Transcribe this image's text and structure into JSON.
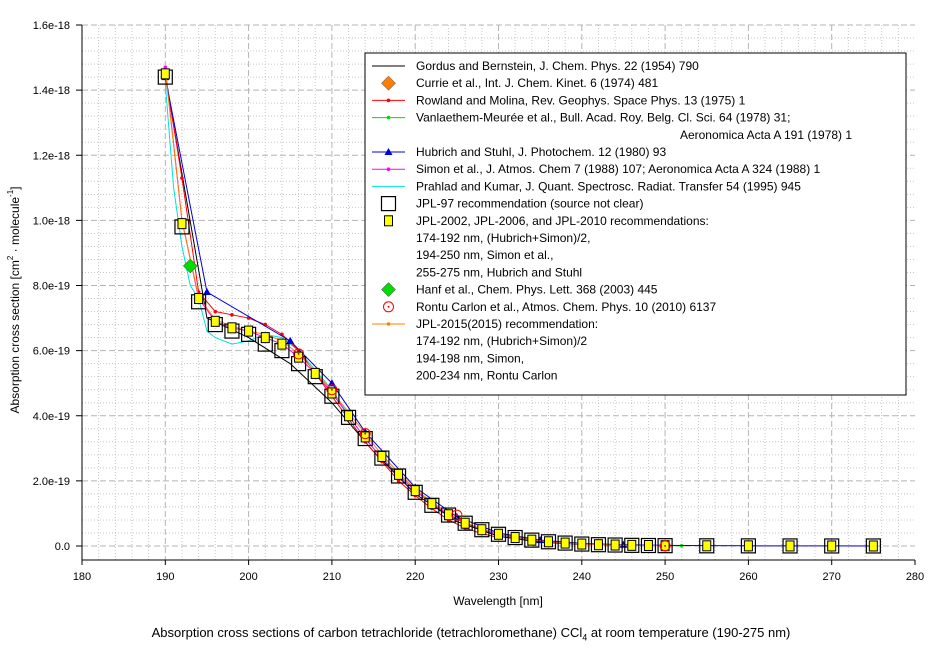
{
  "chart_data": {
    "type": "line",
    "title": "Absorption cross sections of carbon tetrachloride (tetrachloromethane) CCl4 at room temperature (190-275 nm)",
    "caption_parts": {
      "before": "Absorption cross sections of carbon tetrachloride (tetrachloromethane) CCl",
      "sub": "4",
      "after": " at room temperature (190-275 nm)"
    },
    "xlabel": "Wavelength [nm]",
    "ylabel": "Absorption cross section [cm2 · molecule-1]",
    "ylabel_parts": {
      "a": "Absorption cross section [cm",
      "sup1": "2",
      "b": " · molecule",
      "sup2": "-1",
      "c": "]"
    },
    "xlim": [
      180,
      280
    ],
    "ylim": [
      0,
      1.6e-18
    ],
    "x_ticks": [
      "180",
      "190",
      "200",
      "210",
      "220",
      "230",
      "240",
      "250",
      "260",
      "270",
      "280"
    ],
    "y_ticks": [
      "0.0",
      "2.0e-19",
      "4.0e-19",
      "6.0e-19",
      "8.0e-19",
      "1.0e-18",
      "1.2e-18",
      "1.4e-18",
      "1.6e-18"
    ],
    "grid": true,
    "legend_position": "top-right",
    "series": [
      {
        "name": "Gordus and Bernstein, J. Chem. Phys. 22 (1954) 790",
        "style": "line",
        "color": "#000000",
        "x": [
          190,
          195,
          200,
          205,
          210,
          215,
          220,
          225,
          230,
          235,
          240
        ],
        "y": [
          1.44e-18,
          7e-19,
          6.4e-19,
          5.6e-19,
          4.4e-19,
          2.9e-19,
          1.6e-19,
          7.5e-20,
          3e-20,
          1.2e-20,
          5e-21
        ]
      },
      {
        "name": "Currie et al., Int. J. Chem. Kinet. 6 (1974) 481",
        "style": "marker",
        "marker": "diamond",
        "color": "#ff8000",
        "x": [],
        "y": []
      },
      {
        "name": "Rowland and Molina, Rev. Geophys. Space Phys. 13 (1975) 1",
        "style": "line-dot",
        "color": "#ff0000",
        "x": [
          190,
          192,
          194,
          196,
          198,
          200,
          202,
          204,
          206,
          208,
          210,
          212,
          214,
          216,
          218,
          220,
          222,
          224,
          226,
          228,
          230
        ],
        "y": [
          1.45e-18,
          1.13e-18,
          7.8e-19,
          7.2e-19,
          7.1e-19,
          7e-19,
          6.8e-19,
          6.5e-19,
          6e-19,
          5.3e-19,
          4.6e-19,
          3.9e-19,
          3.2e-19,
          2.6e-19,
          2e-19,
          1.55e-19,
          1.15e-19,
          8e-20,
          5.5e-20,
          3.8e-20,
          2.6e-20
        ]
      },
      {
        "name": "Vanlaethem-Meurée et al., Bull. Acad. Roy. Belg. Cl. Sci. 64 (1978) 31;",
        "name2": "Aeronomica Acta A 191 (1978) 1",
        "style": "line-dot",
        "color": "#00dd00",
        "x": [
          230,
          232,
          234,
          236,
          238,
          240,
          242,
          244,
          246,
          248,
          250,
          252
        ],
        "y": [
          3.9e-20,
          2.8e-20,
          2e-20,
          1.4e-20,
          1e-20,
          7e-21,
          5e-21,
          3.5e-21,
          2.5e-21,
          1.8e-21,
          1.2e-21,
          8e-22
        ]
      },
      {
        "name": "Hubrich and Stuhl, J. Photochem. 12 (1980) 93",
        "style": "line-marker",
        "marker": "triangle",
        "color": "#0000dd",
        "x": [
          190,
          195,
          205,
          210,
          214,
          220,
          225,
          230,
          235,
          240,
          245,
          250,
          255,
          260,
          265,
          270,
          275
        ],
        "y": [
          1.44e-18,
          7.8e-19,
          6.3e-19,
          5e-19,
          3.5e-19,
          1.8e-19,
          9e-20,
          4e-20,
          1.8e-20,
          8e-21,
          4e-21,
          2e-21,
          1e-21,
          6e-22,
          4e-22,
          2e-22,
          1e-22
        ]
      },
      {
        "name": "Simon et al., J. Atmos. Chem 7 (1988) 107; Aeronomica Acta A 324 (1988) 1",
        "style": "line-dot",
        "color": "#ff00ff",
        "x": [
          190,
          192,
          194,
          196,
          198,
          200,
          202,
          204,
          206,
          208,
          210,
          212,
          214,
          216,
          218,
          220,
          222,
          224,
          226,
          228,
          230,
          232,
          234,
          236,
          238,
          240,
          242,
          244,
          246,
          248,
          250
        ],
        "y": [
          1.47e-18,
          1e-18,
          7.6e-19,
          6.9e-19,
          6.7e-19,
          6.6e-19,
          6.4e-19,
          6.2e-19,
          5.8e-19,
          5.3e-19,
          4.7e-19,
          4e-19,
          3.3e-19,
          2.7e-19,
          2.15e-19,
          1.7e-19,
          1.3e-19,
          9.6e-20,
          7e-20,
          5e-20,
          3.6e-20,
          2.6e-20,
          1.8e-20,
          1.3e-20,
          9e-21,
          6e-21,
          4e-21,
          3e-21,
          2e-21,
          1.5e-21,
          1e-21
        ]
      },
      {
        "name": "Prahlad and Kumar, J. Quant. Spectrosc. Radiat. Transfer 54 (1995) 945",
        "style": "line",
        "color": "#00e0e0",
        "x": [
          190,
          191,
          192,
          193,
          194,
          195,
          196,
          198,
          200,
          202,
          204,
          206,
          208,
          210,
          212,
          214,
          216,
          218,
          220,
          222,
          224,
          226,
          228,
          230,
          232,
          234,
          236
        ],
        "y": [
          1.42e-18,
          1.1e-18,
          9.2e-19,
          8e-19,
          7.6e-19,
          6.6e-19,
          6.4e-19,
          6.2e-19,
          6.3e-19,
          6.5e-19,
          6.4e-19,
          6e-19,
          5.4e-19,
          4.8e-19,
          4e-19,
          3.3e-19,
          2.7e-19,
          2.2e-19,
          1.7e-19,
          1.3e-19,
          9.5e-20,
          7e-20,
          5e-20,
          3.5e-20,
          2.5e-20,
          1.8e-20,
          1.3e-20
        ]
      },
      {
        "name": "JPL-97 recommendation (source not clear)",
        "style": "marker",
        "marker": "open-square",
        "color": "#000000",
        "x": [
          190,
          192,
          194,
          196,
          198,
          200,
          202,
          204,
          206,
          208,
          210,
          212,
          214,
          216,
          218,
          220,
          222,
          224,
          226,
          228,
          230,
          232,
          234,
          236,
          238,
          240,
          242,
          244,
          246,
          248,
          250,
          255,
          260,
          265,
          270,
          275
        ],
        "y": [
          1.44e-18,
          9.8e-19,
          7.5e-19,
          6.8e-19,
          6.6e-19,
          6.5e-19,
          6.2e-19,
          6e-19,
          5.6e-19,
          5.2e-19,
          4.6e-19,
          3.95e-19,
          3.3e-19,
          2.7e-19,
          2.15e-19,
          1.65e-19,
          1.25e-19,
          9.5e-20,
          7e-20,
          5e-20,
          3.6e-20,
          2.6e-20,
          1.8e-20,
          1.3e-20,
          9e-21,
          6e-21,
          4e-21,
          3e-21,
          2e-21,
          1.5e-21,
          1e-21,
          6e-22,
          4e-22,
          2e-22,
          1e-22,
          1e-22
        ]
      },
      {
        "name": "JPL-2002, JPL-2006, and JPL-2010 recommendations:",
        "lines": [
          "174-192 nm, (Hubrich+Simon)/2,",
          "194-250 nm, Simon et al.,",
          "255-275 nm, Hubrich and Stuhl"
        ],
        "style": "marker",
        "marker": "filled-square",
        "color": "#ffff00",
        "x": [
          190,
          192,
          194,
          196,
          198,
          200,
          202,
          204,
          206,
          208,
          210,
          212,
          214,
          216,
          218,
          220,
          222,
          224,
          226,
          228,
          230,
          232,
          234,
          236,
          238,
          240,
          242,
          244,
          246,
          248,
          250,
          255,
          260,
          265,
          270,
          275
        ],
        "y": [
          1.45e-18,
          9.9e-19,
          7.6e-19,
          6.9e-19,
          6.7e-19,
          6.6e-19,
          6.4e-19,
          6.2e-19,
          5.8e-19,
          5.3e-19,
          4.7e-19,
          4e-19,
          3.35e-19,
          2.75e-19,
          2.2e-19,
          1.7e-19,
          1.3e-19,
          9.6e-20,
          7e-20,
          5e-20,
          3.6e-20,
          2.6e-20,
          1.8e-20,
          1.3e-20,
          9e-21,
          6e-21,
          4e-21,
          3e-21,
          2e-21,
          1.5e-21,
          1e-21,
          6e-22,
          4e-22,
          2e-22,
          1e-22,
          1e-22
        ]
      },
      {
        "name": "Hanf et al., Chem. Phys. Lett. 368 (2003) 445",
        "style": "marker",
        "marker": "diamond",
        "color": "#00dd00",
        "x": [
          193
        ],
        "y": [
          8.6e-19
        ]
      },
      {
        "name": "Rontu Carlon et al., Atmos. Chem. Phys. 10 (2010) 6137",
        "style": "marker",
        "marker": "open-circle",
        "color": "#ff0000",
        "x": [
          206,
          210,
          214,
          225,
          250
        ],
        "y": [
          5.9e-19,
          4.8e-19,
          3.45e-19,
          9.5e-20,
          5e-22
        ]
      },
      {
        "name": "JPL-2015(2015) recommendation:",
        "lines": [
          "174-192 nm, (Hubrich+Simon)/2",
          "194-198 nm, Simon,",
          "200-234 nm, Rontu Carlon"
        ],
        "style": "line-dot",
        "color": "#ff8000",
        "x": [
          190,
          192,
          194,
          196,
          198,
          200,
          202,
          204,
          206,
          208,
          210,
          212,
          214,
          216,
          218,
          220,
          222,
          224,
          226,
          228,
          230,
          232,
          234,
          236,
          238,
          240,
          242,
          244,
          246,
          248,
          250
        ],
        "y": [
          1.46e-18,
          1e-18,
          7.65e-19,
          6.95e-19,
          6.75e-19,
          6.6e-19,
          6.5e-19,
          6.3e-19,
          5.9e-19,
          5.35e-19,
          4.75e-19,
          4.1e-19,
          3.45e-19,
          2.8e-19,
          2.25e-19,
          1.75e-19,
          1.35e-19,
          1e-19,
          7.2e-20,
          5.2e-20,
          3.8e-20,
          2.7e-20,
          1.9e-20,
          1.35e-20,
          9.5e-21,
          6.5e-21,
          4.5e-21,
          3e-21,
          2e-21,
          1.5e-21,
          1e-21
        ]
      }
    ]
  }
}
